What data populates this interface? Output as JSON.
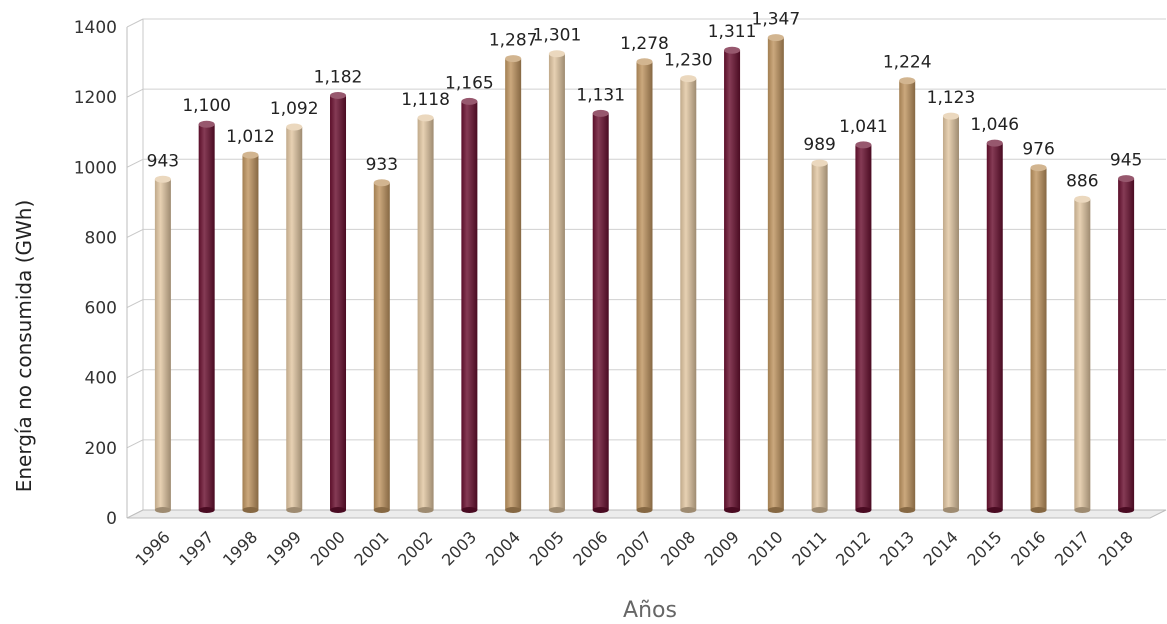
{
  "chart_data": {
    "type": "bar",
    "categories": [
      "1996",
      "1997",
      "1998",
      "1999",
      "2000",
      "2001",
      "2002",
      "2003",
      "2004",
      "2005",
      "2006",
      "2007",
      "2008",
      "2009",
      "2010",
      "2011",
      "2012",
      "2013",
      "2014",
      "2015",
      "2016",
      "2017",
      "2018"
    ],
    "values": [
      943,
      1100,
      1012,
      1092,
      1182,
      933,
      1118,
      1165,
      1287,
      1301,
      1131,
      1278,
      1230,
      1311,
      1347,
      989,
      1041,
      1224,
      1123,
      1046,
      976,
      886,
      945
    ],
    "data_labels": [
      "943",
      "1,100",
      "1,012",
      "1,092",
      "1,182",
      "933",
      "1,118",
      "1,165",
      "1,287",
      "1,301",
      "1,131",
      "1,278",
      "1,230",
      "1,311",
      "1,347",
      "989",
      "1,041",
      "1,224",
      "1,123",
      "1,046",
      "976",
      "886",
      "945"
    ],
    "bar_colors": [
      "#e2c7a2",
      "#6a1030",
      "#bf9560",
      "#e2c7a2",
      "#6a1030",
      "#bf9560",
      "#e2c7a2",
      "#6a1030",
      "#bf9560",
      "#e2c7a2",
      "#6a1030",
      "#bf9560",
      "#e2c7a2",
      "#6a1030",
      "#bf9560",
      "#e2c7a2",
      "#6a1030",
      "#bf9560",
      "#e2c7a2",
      "#6a1030",
      "#bf9560",
      "#e2c7a2",
      "#6a1030"
    ],
    "xlabel": "Años",
    "ylabel": "Energía no consumida (GWh)",
    "ylim": [
      0,
      1400
    ],
    "yticks": [
      0,
      200,
      400,
      600,
      800,
      1000,
      1200,
      1400
    ],
    "ytick_labels": [
      "0",
      "200",
      "400",
      "600",
      "800",
      "1000",
      "1200",
      "1400"
    ],
    "grid": true,
    "style": "3d-cylinder"
  }
}
